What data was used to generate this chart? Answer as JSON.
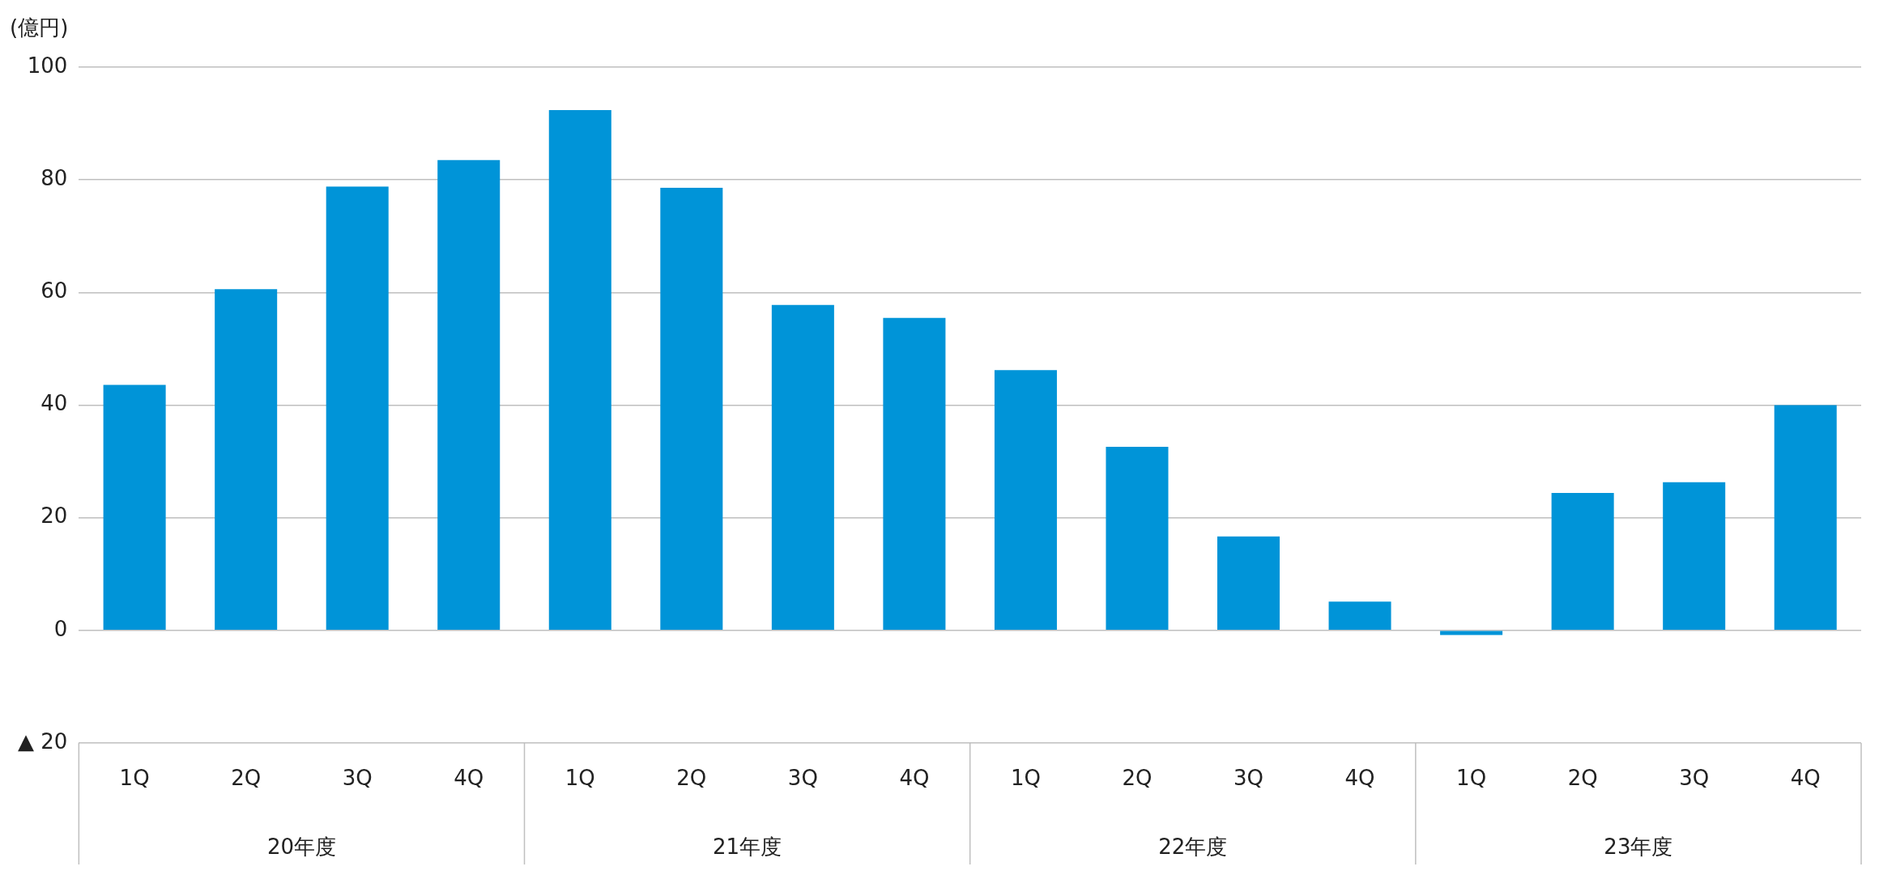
{
  "chart_data": {
    "type": "bar",
    "ylabel": "(億円)",
    "categories": [
      "1Q",
      "2Q",
      "3Q",
      "4Q",
      "1Q",
      "2Q",
      "3Q",
      "4Q",
      "1Q",
      "2Q",
      "3Q",
      "4Q",
      "1Q",
      "2Q",
      "3Q",
      "4Q"
    ],
    "annotations": [
      "20年度",
      "21年度",
      "22年度",
      "23年度"
    ],
    "values": [
      43.6,
      60.6,
      78.8,
      83.5,
      92.4,
      78.6,
      57.8,
      55.5,
      46.2,
      32.6,
      16.7,
      5.1,
      -0.8,
      24.4,
      26.3,
      40.0
    ],
    "color": "#0094d8",
    "ylim": [
      -20,
      100
    ],
    "yticks": [
      {
        "value": -20,
        "label": "▲ 20"
      },
      0,
      20,
      40,
      60,
      80,
      100
    ],
    "grid": "y",
    "legend": false
  }
}
